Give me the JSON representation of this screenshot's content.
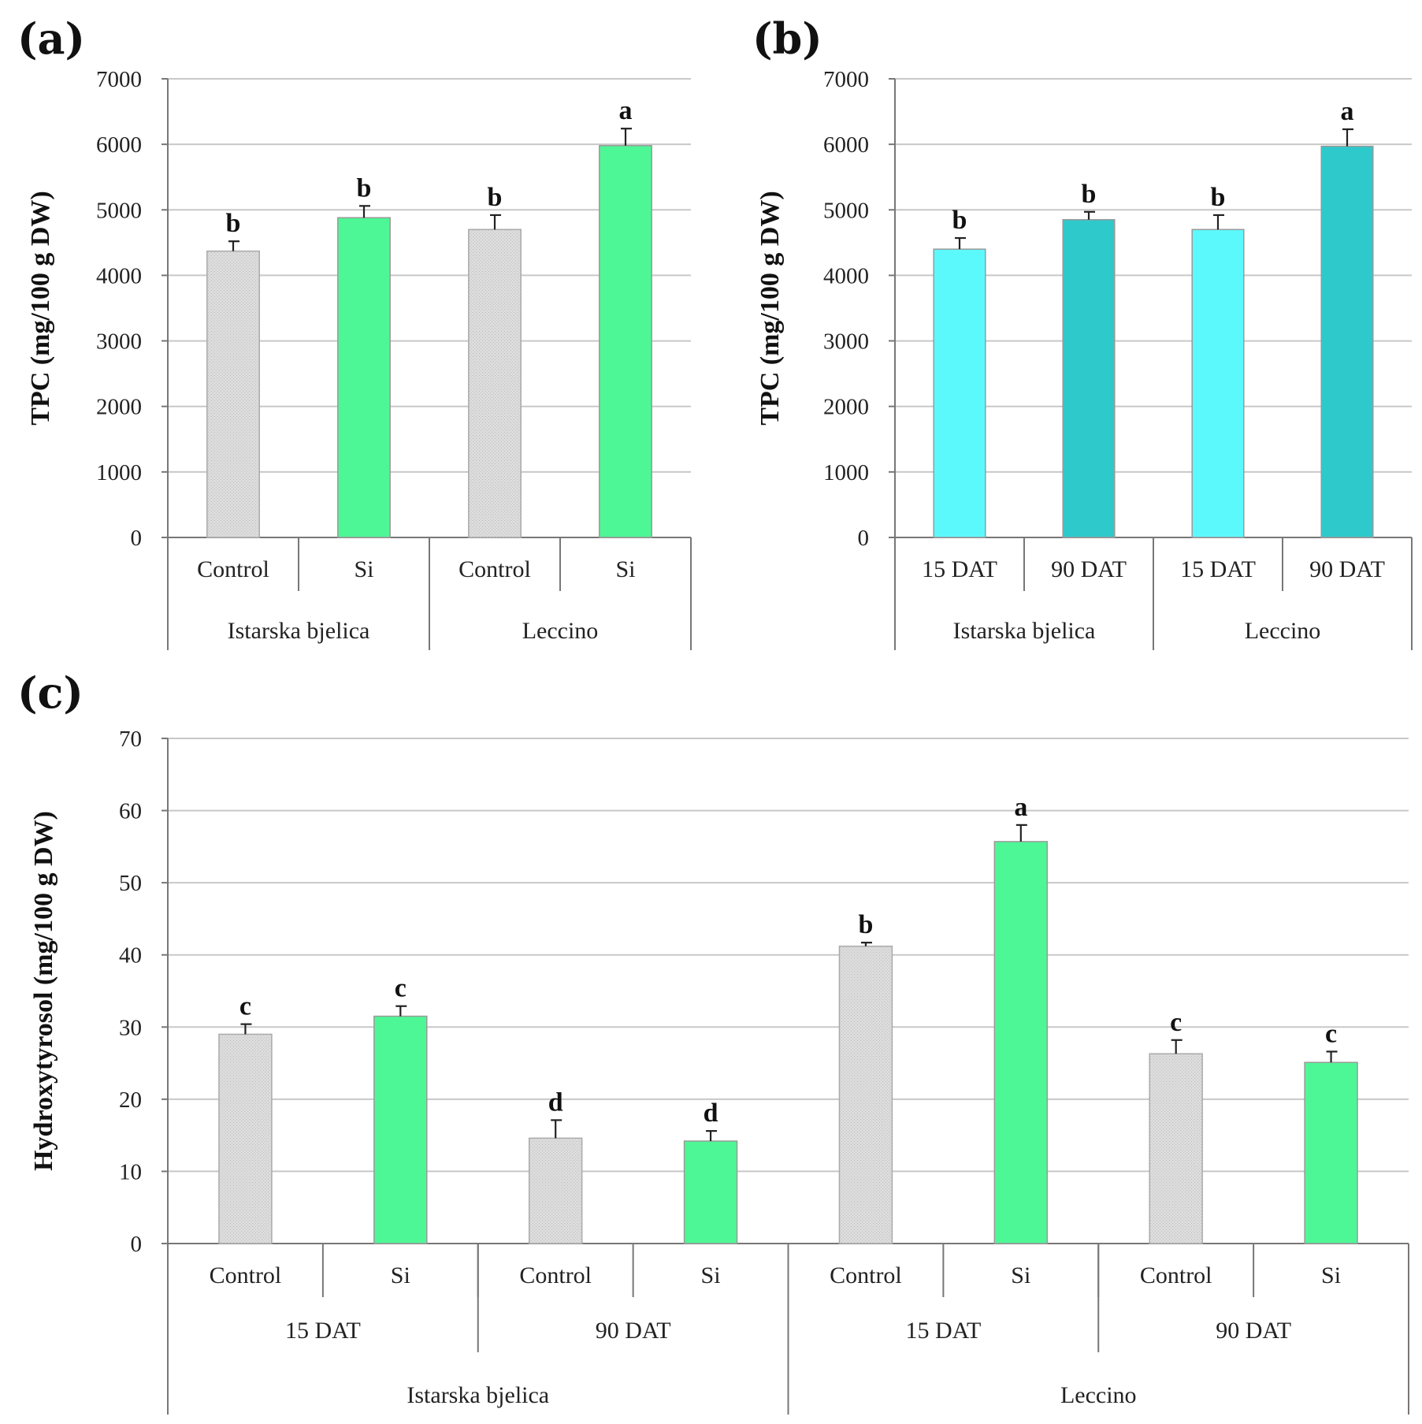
{
  "colors": {
    "control": "#d9d9d9",
    "si": "#4ef795",
    "dat15": "#5cf9fc",
    "dat90": "#2ec9cb"
  },
  "chart_data": [
    {
      "panel": "(a)",
      "type": "bar",
      "ylabel": "TPC (mg/100 g DW)",
      "ylim": [
        0,
        7000
      ],
      "yticks": [
        "0",
        "1000",
        "2000",
        "3000",
        "4000",
        "5000",
        "6000",
        "7000"
      ],
      "groups": [
        "Istarska bjelica",
        "Leccino"
      ],
      "categories": [
        "Control",
        "Si",
        "Control",
        "Si"
      ],
      "values": [
        4370,
        4880,
        4700,
        5980
      ],
      "errors": [
        150,
        180,
        220,
        260
      ],
      "letters": [
        "b",
        "b",
        "b",
        "a"
      ],
      "bar_colors": [
        "control",
        "si",
        "control",
        "si"
      ]
    },
    {
      "panel": "(b)",
      "type": "bar",
      "ylabel": "TPC (mg/100 g DW)",
      "ylim": [
        0,
        7000
      ],
      "yticks": [
        "0",
        "1000",
        "2000",
        "3000",
        "4000",
        "5000",
        "6000",
        "7000"
      ],
      "groups": [
        "Istarska bjelica",
        "Leccino"
      ],
      "categories": [
        "15 DAT",
        "90 DAT",
        "15 DAT",
        "90 DAT"
      ],
      "values": [
        4400,
        4850,
        4700,
        5970
      ],
      "errors": [
        170,
        120,
        220,
        260
      ],
      "letters": [
        "b",
        "b",
        "b",
        "a"
      ],
      "bar_colors": [
        "dat15",
        "dat90",
        "dat15",
        "dat90"
      ]
    },
    {
      "panel": "(c)",
      "type": "bar",
      "ylabel": "Hydroxytyrosol (mg/100 g DW)",
      "ylim": [
        0,
        70
      ],
      "yticks": [
        "0",
        "10",
        "20",
        "30",
        "40",
        "50",
        "60",
        "70"
      ],
      "groups": [
        "Istarska bjelica",
        "Leccino"
      ],
      "subgroups": [
        "15 DAT",
        "90 DAT",
        "15 DAT",
        "90 DAT"
      ],
      "categories": [
        "Control",
        "Si",
        "Control",
        "Si",
        "Control",
        "Si",
        "Control",
        "Si"
      ],
      "values": [
        29.0,
        31.5,
        14.6,
        14.2,
        41.2,
        55.7,
        26.3,
        25.1
      ],
      "errors": [
        1.4,
        1.4,
        2.5,
        1.4,
        0.5,
        2.3,
        1.9,
        1.5
      ],
      "letters": [
        "c",
        "c",
        "d",
        "d",
        "b",
        "a",
        "c",
        "c"
      ],
      "bar_colors": [
        "control",
        "si",
        "control",
        "si",
        "control",
        "si",
        "control",
        "si"
      ]
    }
  ]
}
